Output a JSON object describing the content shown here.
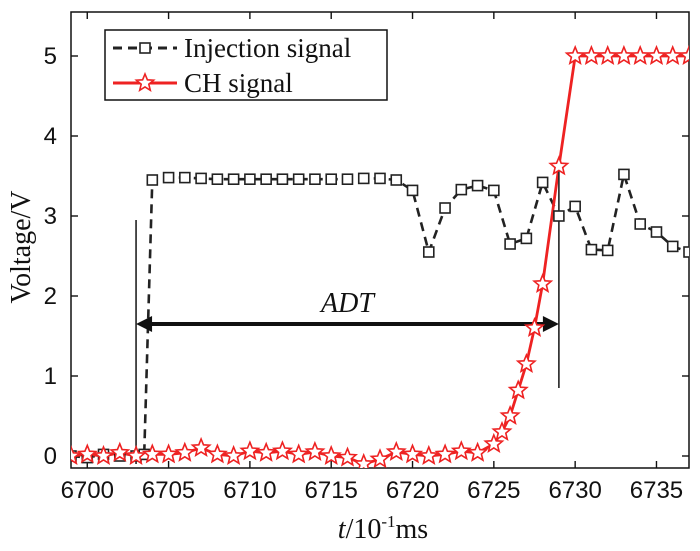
{
  "chart_data": {
    "type": "line",
    "title": "",
    "xlabel_italic": "t",
    "xlabel_rest": "/10",
    "xlabel_exp": "-1",
    "xlabel_unit": "ms",
    "ylabel": "Voltage/V",
    "xlim": [
      6699,
      6737
    ],
    "ylim": [
      -0.15,
      5.55
    ],
    "x_ticks": [
      6700,
      6705,
      6710,
      6715,
      6720,
      6725,
      6730,
      6735
    ],
    "y_ticks": [
      0,
      1,
      2,
      3,
      4,
      5
    ],
    "legend_position": "top-left",
    "series": [
      {
        "name": "Injection signal",
        "color": "#222222",
        "marker": "square",
        "dash": true,
        "x": [
          6699,
          6700,
          6701,
          6702,
          6703,
          6703.5,
          6704,
          6705,
          6706,
          6707,
          6708,
          6709,
          6710,
          6711,
          6712,
          6713,
          6714,
          6715,
          6716,
          6717,
          6718,
          6719,
          6720,
          6721,
          6722,
          6723,
          6724,
          6725,
          6726,
          6727,
          6728,
          6729,
          6730,
          6731,
          6732,
          6733,
          6734,
          6735,
          6736,
          6737
        ],
        "y": [
          0.0,
          -0.02,
          0.02,
          0.0,
          0.0,
          0.02,
          3.45,
          3.48,
          3.48,
          3.47,
          3.46,
          3.46,
          3.46,
          3.46,
          3.46,
          3.46,
          3.46,
          3.46,
          3.46,
          3.47,
          3.47,
          3.45,
          3.32,
          2.55,
          3.1,
          3.33,
          3.38,
          3.32,
          2.65,
          2.72,
          3.42,
          3.0,
          3.12,
          2.58,
          2.57,
          3.52,
          2.9,
          2.8,
          2.62,
          2.55
        ]
      },
      {
        "name": "CH signal",
        "color": "#ee2222",
        "marker": "star",
        "dash": false,
        "x": [
          6699,
          6700,
          6701,
          6702,
          6703,
          6704,
          6705,
          6706,
          6707,
          6708,
          6709,
          6710,
          6711,
          6712,
          6713,
          6714,
          6715,
          6716,
          6717,
          6718,
          6719,
          6720,
          6721,
          6722,
          6723,
          6724,
          6725,
          6725.5,
          6726,
          6726.5,
          6727,
          6727.5,
          6728,
          6729,
          6730,
          6731,
          6732,
          6733,
          6734,
          6735,
          6736,
          6737
        ],
        "y": [
          0.0,
          0.02,
          0.0,
          0.04,
          0.0,
          0.02,
          0.02,
          0.04,
          0.1,
          0.02,
          0.0,
          0.06,
          0.04,
          0.06,
          0.02,
          0.05,
          0.0,
          -0.02,
          -0.1,
          -0.04,
          0.05,
          0.02,
          0.0,
          0.02,
          0.06,
          0.04,
          0.15,
          0.3,
          0.5,
          0.82,
          1.15,
          1.6,
          2.15,
          3.62,
          5.0,
          5.0,
          5.0,
          5.0,
          5.0,
          5.0,
          5.0,
          5.0
        ]
      }
    ],
    "annotation": {
      "label": "ADT",
      "x_start": 6703,
      "x_end": 6729,
      "y": 1.65,
      "left_line": [
        -0.1,
        2.95
      ],
      "right_line": [
        0.85,
        3.62
      ]
    }
  }
}
